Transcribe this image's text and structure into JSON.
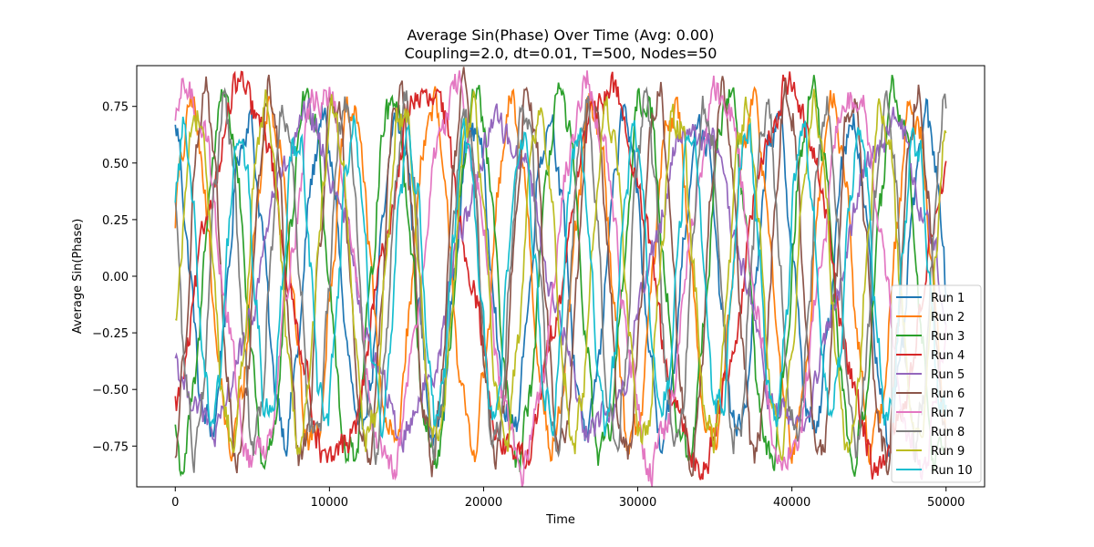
{
  "chart_data": {
    "type": "line",
    "title": "Average Sin(Phase) Over Time (Avg: 0.00)",
    "subtitle": "Coupling=2.0, dt=0.01, T=500, Nodes=50",
    "xlabel": "Time",
    "ylabel": "Average Sin(Phase)",
    "xlim": [
      -2500,
      52500
    ],
    "ylim": [
      -0.93,
      0.93
    ],
    "x_ticks": [
      0,
      10000,
      20000,
      30000,
      40000,
      50000
    ],
    "x_tick_labels": [
      "0",
      "10000",
      "20000",
      "30000",
      "40000",
      "50000"
    ],
    "y_ticks": [
      -0.75,
      -0.5,
      -0.25,
      0.0,
      0.25,
      0.5,
      0.75
    ],
    "y_tick_labels": [
      "−0.75",
      "−0.50",
      "−0.25",
      "0.00",
      "0.25",
      "0.50",
      "0.75"
    ],
    "grid": false,
    "legend_position": "lower-right",
    "series": [
      {
        "name": "Run 1",
        "color": "#1f77b4",
        "amplitude": 0.68,
        "period": 4900,
        "phase": 1.9,
        "x": [
          0,
          50000
        ]
      },
      {
        "name": "Run 2",
        "color": "#ff7f0e",
        "amplitude": 0.74,
        "period": 5200,
        "phase": 0.3,
        "x": [
          0,
          50000
        ]
      },
      {
        "name": "Run 3",
        "color": "#2ca02c",
        "amplitude": 0.8,
        "period": 5450,
        "phase": 4.2,
        "x": [
          0,
          50000
        ]
      },
      {
        "name": "Run 4",
        "color": "#d62728",
        "amplitude": 0.82,
        "period": 11800,
        "phase": 5.5,
        "x": [
          0,
          50000
        ]
      },
      {
        "name": "Run 5",
        "color": "#9467bd",
        "amplitude": 0.66,
        "period": 12600,
        "phase": 3.6,
        "x": [
          0,
          50000
        ]
      },
      {
        "name": "Run 6",
        "color": "#8c564b",
        "amplitude": 0.8,
        "period": 4200,
        "phase": 5.0,
        "x": [
          0,
          50000
        ]
      },
      {
        "name": "Run 7",
        "color": "#e377c2",
        "amplitude": 0.82,
        "period": 8600,
        "phase": 0.9,
        "x": [
          0,
          50000
        ]
      },
      {
        "name": "Run 8",
        "color": "#7f7f7f",
        "amplitude": 0.74,
        "period": 3900,
        "phase": 2.7,
        "x": [
          0,
          50000
        ]
      },
      {
        "name": "Run 9",
        "color": "#bcbd22",
        "amplitude": 0.72,
        "period": 4450,
        "phase": 5.9,
        "x": [
          0,
          50000
        ]
      },
      {
        "name": "Run 10",
        "color": "#17becf",
        "amplitude": 0.62,
        "period": 3650,
        "phase": 0.6,
        "x": [
          0,
          50000
        ]
      }
    ]
  }
}
